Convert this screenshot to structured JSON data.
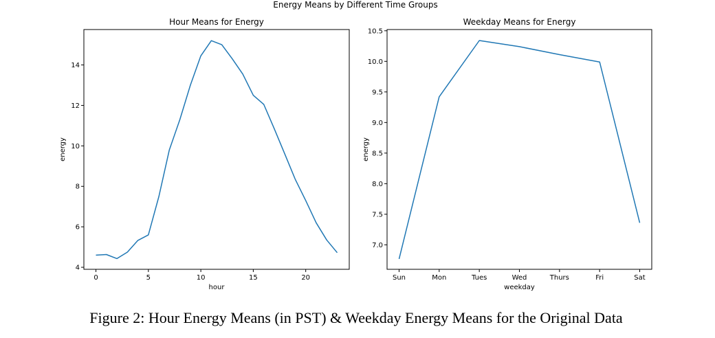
{
  "figure": {
    "suptitle": "Energy Means by Different Time Groups",
    "caption": "Figure 2: Hour Energy Means (in PST) & Weekday Energy Means for the Original Data"
  },
  "chart_data": [
    {
      "type": "line",
      "title": "Hour Means for Energy",
      "xlabel": "hour",
      "ylabel": "energy",
      "xlim": [
        -1.15,
        24.15
      ],
      "ylim": [
        3.9,
        15.75
      ],
      "xticks": [
        0,
        5,
        10,
        15,
        20
      ],
      "yticks": [
        4,
        6,
        8,
        10,
        12,
        14
      ],
      "grid": false,
      "color": "#1f77b4",
      "series": [
        {
          "x": [
            0,
            1,
            2,
            3,
            4,
            5,
            6,
            7,
            8,
            9,
            10,
            11,
            12,
            13,
            14,
            15,
            16,
            17,
            18,
            19,
            20,
            21,
            22,
            23
          ],
          "values": [
            4.6,
            4.63,
            4.43,
            4.75,
            5.33,
            5.6,
            7.5,
            9.8,
            11.3,
            13.0,
            14.45,
            15.2,
            15.0,
            14.3,
            13.55,
            12.5,
            12.05,
            10.85,
            9.6,
            8.35,
            7.3,
            6.2,
            5.35,
            4.72
          ]
        }
      ]
    },
    {
      "type": "line",
      "title": "Weekday Means for Energy",
      "xlabel": "weekday",
      "ylabel": "energy",
      "categories": [
        "Sun",
        "Mon",
        "Tues",
        "Wed",
        "Thurs",
        "Fri",
        "Sat"
      ],
      "ylim": [
        6.6,
        10.52
      ],
      "yticks": [
        7.0,
        7.5,
        8.0,
        8.5,
        9.0,
        9.5,
        10.0,
        10.5
      ],
      "grid": false,
      "color": "#1f77b4",
      "series": [
        {
          "values": [
            6.77,
            9.42,
            10.34,
            10.24,
            10.11,
            9.99,
            7.36
          ]
        }
      ]
    }
  ]
}
